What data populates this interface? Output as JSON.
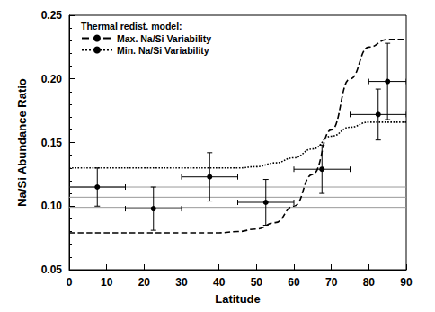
{
  "chart_data": {
    "type": "scatter",
    "xlabel": "Latitude",
    "ylabel": "Na/Si Abundance Ratio",
    "legend_title": "Thermal redist. model:",
    "legend": "upper left",
    "grid": false,
    "xlim": [
      0,
      90
    ],
    "xticks": [
      0,
      10,
      20,
      30,
      40,
      50,
      60,
      70,
      80,
      90
    ],
    "ylim": [
      0.05,
      0.25
    ],
    "yticks": [
      {
        "value": 0.05,
        "label": "0.05"
      },
      {
        "value": 0.1,
        "label": "0.10"
      },
      {
        "value": 0.15,
        "label": "0.15"
      },
      {
        "value": 0.2,
        "label": "0.20"
      },
      {
        "value": 0.25,
        "label": "0.25"
      }
    ],
    "points": {
      "x": [
        7.5,
        22.5,
        37.5,
        52.5,
        67.5,
        82.5,
        85
      ],
      "values": [
        0.115,
        0.098,
        0.123,
        0.103,
        0.129,
        0.172,
        0.198
      ],
      "xerr": [
        7.5,
        7.5,
        7.5,
        7.5,
        7.5,
        7.5,
        5
      ],
      "yerr": [
        0.015,
        0.017,
        0.019,
        0.018,
        0.019,
        0.02,
        0.03
      ],
      "color": "#000000",
      "marker": "circle"
    },
    "hlines": {
      "values": [
        0.099,
        0.107,
        0.115
      ],
      "color": "#999999"
    },
    "series": [
      {
        "name": "Max. Na/Si Variability",
        "type": "line",
        "line_style": "dashed",
        "color": "#000000",
        "x": [
          0,
          10,
          20,
          30,
          40,
          45,
          50,
          55,
          60,
          65,
          70,
          75,
          80,
          85,
          90
        ],
        "values": [
          0.079,
          0.079,
          0.079,
          0.079,
          0.079,
          0.08,
          0.082,
          0.087,
          0.1,
          0.125,
          0.16,
          0.2,
          0.225,
          0.231,
          0.231
        ]
      },
      {
        "name": "Min. Na/Si Variability",
        "type": "line",
        "line_style": "dotted",
        "color": "#000000",
        "x": [
          0,
          10,
          20,
          30,
          40,
          45,
          50,
          55,
          60,
          65,
          70,
          75,
          80,
          85,
          90
        ],
        "values": [
          0.13,
          0.13,
          0.13,
          0.13,
          0.13,
          0.13,
          0.131,
          0.134,
          0.138,
          0.145,
          0.155,
          0.162,
          0.166,
          0.166,
          0.166
        ]
      }
    ]
  }
}
